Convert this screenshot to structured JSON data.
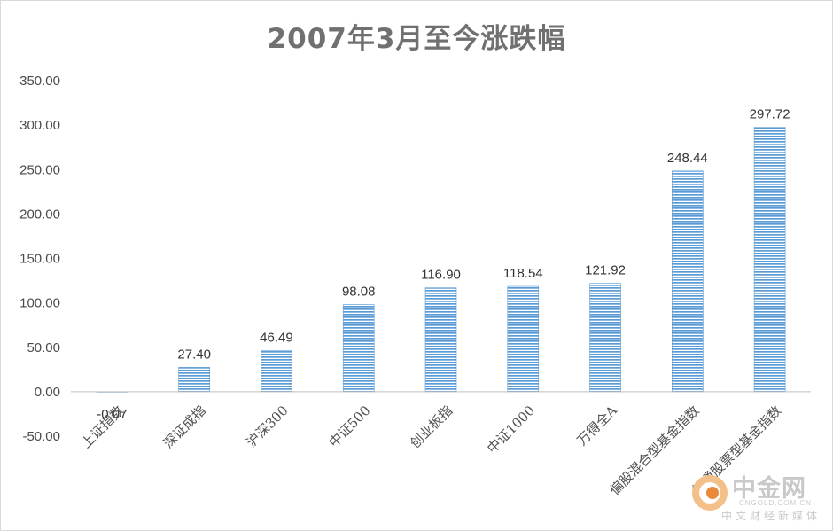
{
  "chart_data": {
    "type": "bar",
    "title": "2007年3月至今涨跌幅",
    "categories": [
      "上证指数",
      "深证成指",
      "沪深300",
      "中证500",
      "创业板指",
      "中证1000",
      "万得全A",
      "偏股混合型基金指数",
      "普通股票型基金指数"
    ],
    "values": [
      -0.07,
      27.4,
      46.49,
      98.08,
      116.9,
      118.54,
      121.92,
      248.44,
      297.72
    ],
    "value_labels": [
      "-0.07",
      "27.40",
      "46.49",
      "98.08",
      "116.90",
      "118.54",
      "121.92",
      "248.44",
      "297.72"
    ],
    "y_ticks": [
      "350.00",
      "300.00",
      "250.00",
      "200.00",
      "150.00",
      "100.00",
      "50.00",
      "0.00",
      "-50.00"
    ],
    "ylim": [
      -50,
      350
    ],
    "grid": false,
    "legend": "none",
    "bar_color": "#5b9bd5"
  },
  "watermark": {
    "name": "中金网",
    "domain": "CNGOLD.COM.CN",
    "tagline": "中文财经新媒体"
  },
  "icons": {
    "watermark_logo": "cngold-logo-icon"
  }
}
